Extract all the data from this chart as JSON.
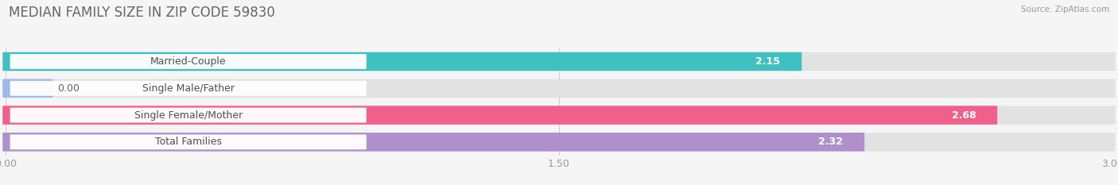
{
  "title": "MEDIAN FAMILY SIZE IN ZIP CODE 59830",
  "source": "Source: ZipAtlas.com",
  "categories": [
    "Married-Couple",
    "Single Male/Father",
    "Single Female/Mother",
    "Total Families"
  ],
  "values": [
    2.15,
    0.0,
    2.68,
    2.32
  ],
  "bar_colors": [
    "#40c0c0",
    "#a0b8e8",
    "#f0608a",
    "#b090cc"
  ],
  "xlim": [
    0,
    3.0
  ],
  "xticks": [
    0.0,
    1.5,
    3.0
  ],
  "xtick_labels": [
    "0.00",
    "1.50",
    "3.00"
  ],
  "background_color": "#f5f5f5",
  "bar_bg_color": "#e2e2e2",
  "label_box_color": "#ffffff",
  "title_fontsize": 12,
  "tick_fontsize": 9,
  "label_fontsize": 9,
  "value_fontsize": 9
}
